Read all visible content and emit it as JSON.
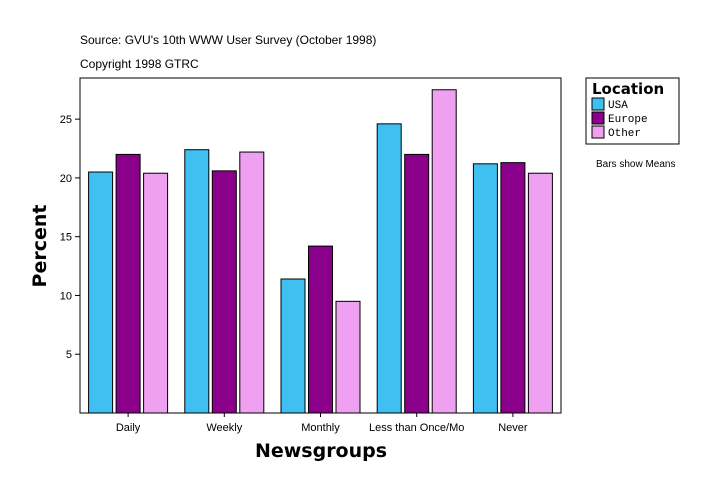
{
  "chart_data": {
    "type": "bar",
    "title": "Source: GVU's 10th WWW User Survey (October 1998)",
    "subtitle": "Copyright 1998 GTRC",
    "xlabel": "Newsgroups",
    "ylabel": "Percent",
    "categories": [
      "Daily",
      "Weekly",
      "Monthly",
      "Less than Once/Mo",
      "Never"
    ],
    "series": [
      {
        "name": "USA",
        "color": "#40c0f0",
        "values": [
          20.5,
          22.4,
          11.4,
          24.6,
          21.2
        ]
      },
      {
        "name": "Europe",
        "color": "#8b008b",
        "values": [
          22.0,
          20.6,
          14.2,
          22.0,
          21.3
        ]
      },
      {
        "name": "Other",
        "color": "#f0a0f0",
        "values": [
          20.4,
          22.2,
          9.5,
          27.5,
          20.4
        ]
      }
    ],
    "ylim": [
      0,
      28.5
    ],
    "yticks": [
      5,
      10,
      15,
      20,
      25
    ],
    "grid": false,
    "legend": {
      "title": "Location",
      "placement": "right"
    },
    "note": "Bars show Means"
  }
}
